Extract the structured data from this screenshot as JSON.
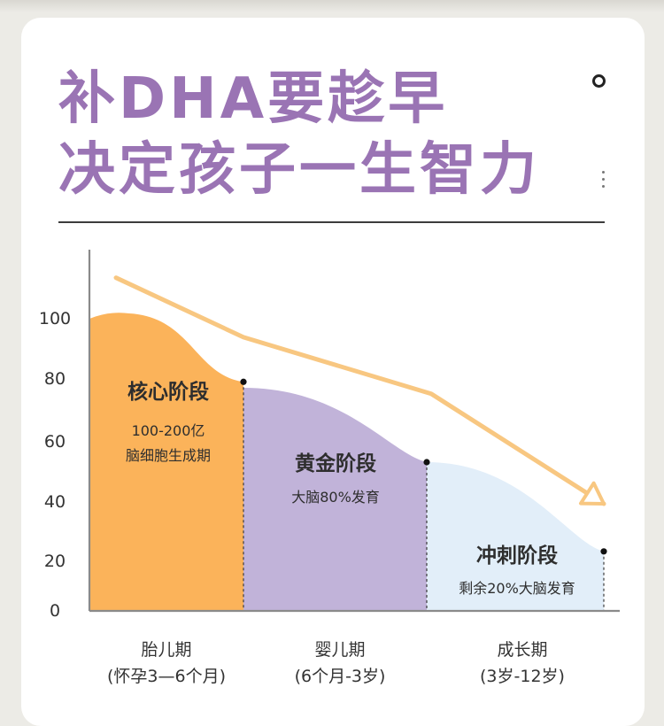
{
  "headline": {
    "line1": "补DHA要趁早",
    "line2": "决定孩子一生智力"
  },
  "colors": {
    "purple": "#9a74b4",
    "orange": "#fbb35a",
    "lavender": "#c1b3d9",
    "light_blue": "#e2eef9",
    "arrow": "#f8c781"
  },
  "icons": {
    "top_right": "ring-icon",
    "menu": "vertical-dots-icon"
  },
  "chart_data": {
    "type": "area",
    "ylim": [
      0,
      110
    ],
    "yticks": [
      0,
      20,
      40,
      60,
      80,
      100
    ],
    "grid": false,
    "categories": [
      "胎儿期",
      "婴儿期",
      "成长期"
    ],
    "category_sublabels": [
      "(怀孕3—6个月)",
      "(6个月-3岁)",
      "(3岁-12岁)"
    ],
    "stages": [
      {
        "name": "核心阶段",
        "desc1": "100-200亿",
        "desc2": "脑细胞生成期",
        "color": "#fbb35a",
        "start_value": 100,
        "end_value": 77
      },
      {
        "name": "黄金阶段",
        "desc1": "大脑80%发育",
        "desc2": "",
        "color": "#c1b3d9",
        "start_value": 75,
        "end_value": 50
      },
      {
        "name": "冲刺阶段",
        "desc1": "剩余20%大脑发育",
        "desc2": "",
        "color": "#e2eef9",
        "start_value": 50,
        "end_value": 20
      }
    ],
    "trend_line": {
      "values": [
        112,
        92,
        73,
        36
      ],
      "style": "arrow",
      "color": "#f8c781"
    }
  }
}
